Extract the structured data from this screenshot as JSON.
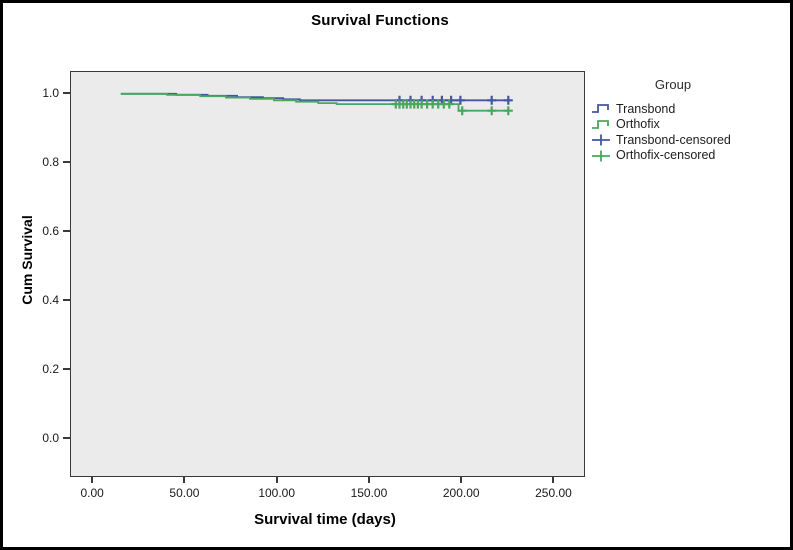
{
  "colors": {
    "transbond_blue": "#44569f",
    "orthofix_green": "#49a75f",
    "plot_background": "#ebebeb",
    "axis_line": "#3a3a3a",
    "frame_border": "#000000"
  },
  "chart_data": {
    "type": "line",
    "subtype": "kaplan-meier-survival-step",
    "title": "Survival Functions",
    "xlabel": "Survival time (days)",
    "ylabel": "Cum Survival",
    "legend_title": "Group",
    "legend_position": "right",
    "grid": false,
    "xlim": [
      -12,
      266
    ],
    "ylim": [
      -0.107,
      1.063
    ],
    "xticks": [
      {
        "value": 0,
        "label": "0.00"
      },
      {
        "value": 50,
        "label": "50.00"
      },
      {
        "value": 100,
        "label": "100.00"
      },
      {
        "value": 150,
        "label": "150.00"
      },
      {
        "value": 200,
        "label": "200.00"
      },
      {
        "value": 250,
        "label": "250.00"
      }
    ],
    "yticks": [
      {
        "value": 1.0,
        "label": "1.0"
      },
      {
        "value": 0.8,
        "label": "0.8"
      },
      {
        "value": 0.6,
        "label": "0.6"
      },
      {
        "value": 0.4,
        "label": "0.4"
      },
      {
        "value": 0.2,
        "label": "0.2"
      },
      {
        "value": 0.0,
        "label": "0.0"
      }
    ],
    "series": [
      {
        "name": "Transbond",
        "color": "#44569f",
        "steps": [
          [
            15,
            1.0
          ],
          [
            45,
            0.997
          ],
          [
            62,
            0.994
          ],
          [
            78,
            0.99
          ],
          [
            92,
            0.987
          ],
          [
            103,
            0.984
          ],
          [
            112,
            0.981
          ],
          [
            225,
            0.981
          ]
        ],
        "censored_days": [
          166,
          172,
          178,
          184,
          189,
          194,
          199,
          216,
          225
        ]
      },
      {
        "name": "Orthofix",
        "color": "#49a75f",
        "steps": [
          [
            15,
            1.0
          ],
          [
            40,
            0.997
          ],
          [
            58,
            0.993
          ],
          [
            72,
            0.989
          ],
          [
            85,
            0.985
          ],
          [
            98,
            0.981
          ],
          [
            110,
            0.977
          ],
          [
            122,
            0.973
          ],
          [
            132,
            0.97
          ],
          [
            198,
            0.951
          ],
          [
            225,
            0.951
          ]
        ],
        "censored_days": [
          164,
          166,
          168,
          170,
          172,
          174,
          176,
          178,
          181,
          184,
          187,
          190,
          193,
          200,
          216,
          225
        ]
      }
    ],
    "legend": [
      {
        "label": "Transbond",
        "glyph": "step-line",
        "color": "#44569f"
      },
      {
        "label": "Orthofix",
        "glyph": "step-line",
        "color": "#49a75f"
      },
      {
        "label": "Transbond-censored",
        "glyph": "plus",
        "color": "#44569f"
      },
      {
        "label": "Orthofix-censored",
        "glyph": "plus",
        "color": "#49a75f"
      }
    ]
  }
}
